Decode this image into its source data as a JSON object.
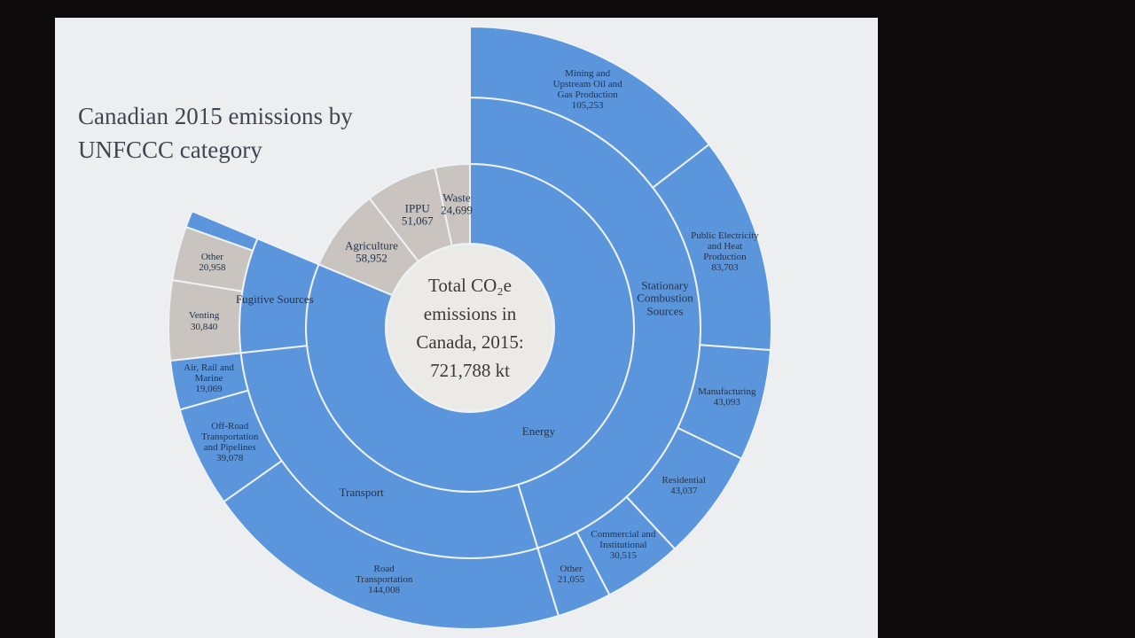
{
  "chart_data": {
    "type": "sunburst",
    "title": "Canadian 2015 emissions by UNFCCC category",
    "center_label": [
      "Total CO₂e",
      "emissions in",
      "Canada, 2015:",
      "721,788 kt"
    ],
    "children": [
      {
        "name": "Energy",
        "color": "#5b96dc",
        "children": [
          {
            "name": "Stationary Combustion Sources",
            "children": [
              {
                "name": "Mining and Upstream Oil and Gas Production",
                "value": 105253,
                "value_label": "105,253"
              },
              {
                "name": "Public Electricity and Heat Production",
                "value": 83703,
                "value_label": "83,703"
              },
              {
                "name": "Manufacturing",
                "value": 43093,
                "value_label": "43,093"
              },
              {
                "name": "Residential",
                "value": 43037,
                "value_label": "43,037"
              },
              {
                "name": "Commercial and Institutional",
                "value": 30515,
                "value_label": "30,515"
              },
              {
                "name": "Other",
                "value": 21055,
                "value_label": "21,055"
              }
            ]
          },
          {
            "name": "Transport",
            "children": [
              {
                "name": "Road Transportation",
                "value": 144008,
                "value_label": "144,008"
              },
              {
                "name": "Off-Road Transportation and Pipelines",
                "value": 39078,
                "value_label": "39,078"
              },
              {
                "name": "Air, Rail and Marine",
                "value": 19069,
                "value_label": "19,069"
              }
            ]
          },
          {
            "name": "Fugitive Sources",
            "children": [
              {
                "name": "Venting",
                "value": 30840,
                "value_label": "30,840",
                "color": "#c9c4bf"
              },
              {
                "name": "Other",
                "value": 20958,
                "value_label": "20,958",
                "color": "#c9c4bf"
              },
              {
                "name": null,
                "value": 6461
              }
            ]
          }
        ]
      },
      {
        "name": "Agriculture",
        "value": 58952,
        "value_label": "58,952",
        "color": "#c9c4bf"
      },
      {
        "name": "IPPU",
        "value": 51067,
        "value_label": "51,067",
        "color": "#c9c4bf"
      },
      {
        "name": "Waste",
        "value": 24699,
        "value_label": "24,699",
        "color": "#c9c4bf"
      }
    ]
  }
}
